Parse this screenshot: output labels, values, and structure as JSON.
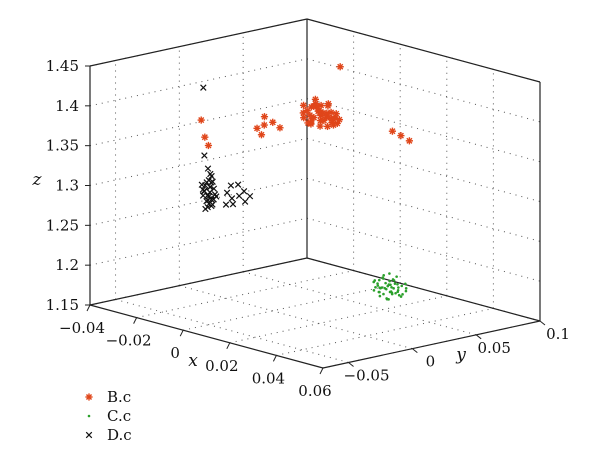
{
  "chart_data": {
    "type": "scatter",
    "projection": "3d",
    "title": "",
    "xlabel": "x",
    "ylabel": "y",
    "zlabel": "z",
    "xlim": [
      -0.04,
      0.06
    ],
    "ylim": [
      -0.07,
      0.1
    ],
    "zlim": [
      1.15,
      1.45
    ],
    "x_ticks": [
      "-0.04",
      "-0.02",
      "0",
      "0.02",
      "0.04",
      "0.06"
    ],
    "y_ticks": [
      "-0.05",
      "0",
      "0.05",
      "0.1"
    ],
    "z_ticks": [
      "1.15",
      "1.2",
      "1.25",
      "1.3",
      "1.35",
      "1.4",
      "1.45"
    ],
    "grid": true,
    "legend_position": "bottom-left",
    "series": [
      {
        "name": "B.c",
        "marker": "asterisk",
        "color": "#e0461a",
        "points": [
          [
            -0.012,
            0.046,
            1.373
          ],
          [
            -0.01,
            0.049,
            1.366
          ],
          [
            -0.008,
            0.051,
            1.378
          ],
          [
            -0.011,
            0.05,
            1.36
          ],
          [
            -0.006,
            0.053,
            1.37
          ],
          [
            -0.009,
            0.054,
            1.363
          ],
          [
            -0.013,
            0.048,
            1.381
          ],
          [
            -0.007,
            0.057,
            1.368
          ],
          [
            -0.005,
            0.055,
            1.376
          ],
          [
            -0.01,
            0.052,
            1.384
          ],
          [
            -0.004,
            0.058,
            1.362
          ],
          [
            -0.012,
            0.052,
            1.357
          ],
          [
            -0.008,
            0.047,
            1.37
          ],
          [
            -0.006,
            0.049,
            1.386
          ],
          [
            -0.009,
            0.056,
            1.372
          ],
          [
            -0.003,
            0.052,
            1.366
          ],
          [
            -0.011,
            0.055,
            1.379
          ],
          [
            -0.007,
            0.05,
            1.359
          ],
          [
            -0.005,
            0.047,
            1.375
          ],
          [
            -0.002,
            0.056,
            1.369
          ],
          [
            -0.013,
            0.053,
            1.367
          ],
          [
            -0.008,
            0.058,
            1.381
          ],
          [
            -0.01,
            0.046,
            1.362
          ],
          [
            -0.004,
            0.051,
            1.389
          ],
          [
            -0.006,
            0.054,
            1.358
          ],
          [
            -0.012,
            0.049,
            1.375
          ],
          [
            -0.009,
            0.05,
            1.391
          ],
          [
            -0.005,
            0.059,
            1.373
          ],
          [
            -0.007,
            0.053,
            1.365
          ],
          [
            -0.003,
            0.048,
            1.379
          ],
          [
            -0.011,
            0.057,
            1.37
          ],
          [
            -0.014,
            0.05,
            1.364
          ],
          [
            -0.008,
            0.045,
            1.384
          ],
          [
            -0.006,
            0.06,
            1.366
          ],
          [
            -0.01,
            0.054,
            1.374
          ],
          [
            -0.004,
            0.055,
            1.361
          ],
          [
            -0.013,
            0.056,
            1.377
          ],
          [
            -0.002,
            0.05,
            1.372
          ],
          [
            -0.02,
            0.03,
            1.357
          ],
          [
            -0.022,
            0.028,
            1.352
          ],
          [
            -0.018,
            0.033,
            1.361
          ],
          [
            -0.019,
            0.026,
            1.347
          ],
          [
            -0.016,
            0.035,
            1.355
          ],
          [
            -0.021,
            0.032,
            1.366
          ],
          [
            0.014,
            0.075,
            1.355
          ],
          [
            0.016,
            0.078,
            1.349
          ],
          [
            0.012,
            0.072,
            1.36
          ],
          [
            0.0,
            0.053,
            1.438
          ],
          [
            -0.034,
            0.009,
            1.338
          ],
          [
            -0.033,
            0.01,
            1.328
          ],
          [
            -0.035,
            0.008,
            1.359
          ]
        ]
      },
      {
        "name": "C.c",
        "marker": "dot",
        "color": "#2ba02b",
        "points": [
          [
            0.012,
            0.066,
            1.165
          ],
          [
            0.014,
            0.068,
            1.16
          ],
          [
            0.01,
            0.064,
            1.17
          ],
          [
            0.016,
            0.07,
            1.158
          ],
          [
            0.013,
            0.062,
            1.168
          ],
          [
            0.011,
            0.069,
            1.162
          ],
          [
            0.015,
            0.065,
            1.172
          ],
          [
            0.017,
            0.067,
            1.164
          ],
          [
            0.009,
            0.066,
            1.166
          ],
          [
            0.012,
            0.071,
            1.159
          ],
          [
            0.014,
            0.063,
            1.174
          ],
          [
            0.018,
            0.069,
            1.161
          ],
          [
            0.01,
            0.068,
            1.176
          ],
          [
            0.013,
            0.06,
            1.163
          ],
          [
            0.016,
            0.072,
            1.169
          ],
          [
            0.011,
            0.064,
            1.155
          ],
          [
            0.015,
            0.067,
            1.178
          ],
          [
            0.012,
            0.062,
            1.167
          ],
          [
            0.019,
            0.066,
            1.16
          ],
          [
            0.008,
            0.069,
            1.171
          ],
          [
            0.014,
            0.073,
            1.165
          ],
          [
            0.017,
            0.061,
            1.166
          ],
          [
            0.01,
            0.061,
            1.173
          ],
          [
            0.013,
            0.07,
            1.157
          ],
          [
            0.016,
            0.064,
            1.17
          ],
          [
            0.012,
            0.074,
            1.168
          ],
          [
            0.011,
            0.067,
            1.18
          ],
          [
            0.018,
            0.065,
            1.175
          ],
          [
            0.009,
            0.063,
            1.161
          ],
          [
            0.015,
            0.071,
            1.163
          ],
          [
            0.013,
            0.066,
            1.152
          ],
          [
            0.02,
            0.068,
            1.167
          ],
          [
            0.01,
            0.072,
            1.164
          ],
          [
            0.014,
            0.059,
            1.169
          ],
          [
            0.016,
            0.068,
            1.182
          ],
          [
            0.012,
            0.065,
            1.158
          ],
          [
            0.017,
            0.073,
            1.172
          ],
          [
            0.011,
            0.06,
            1.176
          ],
          [
            0.015,
            0.062,
            1.156
          ],
          [
            0.013,
            0.068,
            1.174
          ],
          [
            0.019,
            0.07,
            1.169
          ],
          [
            0.008,
            0.066,
            1.163
          ],
          [
            0.014,
            0.066,
            1.185
          ],
          [
            0.012,
            0.069,
            1.15
          ],
          [
            0.016,
            0.066,
            1.178
          ],
          [
            0.01,
            0.065,
            1.159
          ],
          [
            0.018,
            0.062,
            1.171
          ],
          [
            0.011,
            0.071,
            1.167
          ],
          [
            0.015,
            0.069,
            1.16
          ],
          [
            0.013,
            0.063,
            1.179
          ]
        ]
      },
      {
        "name": "D.c",
        "marker": "x",
        "color": "#111111",
        "points": [
          [
            -0.03,
            0.004,
            1.27
          ],
          [
            -0.029,
            0.005,
            1.265
          ],
          [
            -0.031,
            0.003,
            1.275
          ],
          [
            -0.03,
            0.006,
            1.28
          ],
          [
            -0.028,
            0.004,
            1.26
          ],
          [
            -0.031,
            0.005,
            1.285
          ],
          [
            -0.029,
            0.003,
            1.29
          ],
          [
            -0.03,
            0.004,
            1.255
          ],
          [
            -0.028,
            0.006,
            1.272
          ],
          [
            -0.032,
            0.004,
            1.268
          ],
          [
            -0.029,
            0.007,
            1.278
          ],
          [
            -0.031,
            0.006,
            1.262
          ],
          [
            -0.03,
            0.002,
            1.283
          ],
          [
            -0.028,
            0.003,
            1.288
          ],
          [
            -0.029,
            0.005,
            1.257
          ],
          [
            -0.031,
            0.004,
            1.252
          ],
          [
            -0.03,
            0.007,
            1.293
          ],
          [
            -0.032,
            0.005,
            1.273
          ],
          [
            -0.028,
            0.005,
            1.266
          ],
          [
            -0.029,
            0.004,
            1.281
          ],
          [
            -0.03,
            0.005,
            1.259
          ],
          [
            -0.031,
            0.002,
            1.277
          ],
          [
            -0.029,
            0.006,
            1.287
          ],
          [
            -0.03,
            0.003,
            1.263
          ],
          [
            -0.028,
            0.007,
            1.269
          ],
          [
            -0.032,
            0.003,
            1.282
          ],
          [
            -0.029,
            0.002,
            1.271
          ],
          [
            -0.03,
            0.006,
            1.296
          ],
          [
            -0.031,
            0.007,
            1.267
          ],
          [
            -0.028,
            0.002,
            1.276
          ],
          [
            -0.025,
            0.01,
            1.275
          ],
          [
            -0.024,
            0.012,
            1.268
          ],
          [
            -0.022,
            0.014,
            1.272
          ],
          [
            -0.023,
            0.011,
            1.262
          ],
          [
            -0.021,
            0.016,
            1.278
          ],
          [
            -0.025,
            0.013,
            1.283
          ],
          [
            -0.02,
            0.015,
            1.266
          ],
          [
            -0.026,
            0.011,
            1.259
          ],
          [
            -0.019,
            0.017,
            1.273
          ],
          [
            -0.023,
            0.015,
            1.285
          ],
          [
            -0.033,
            0.006,
            1.402
          ],
          [
            -0.032,
            0.005,
            1.318
          ],
          [
            -0.031,
            0.006,
            1.302
          ]
        ]
      }
    ]
  }
}
